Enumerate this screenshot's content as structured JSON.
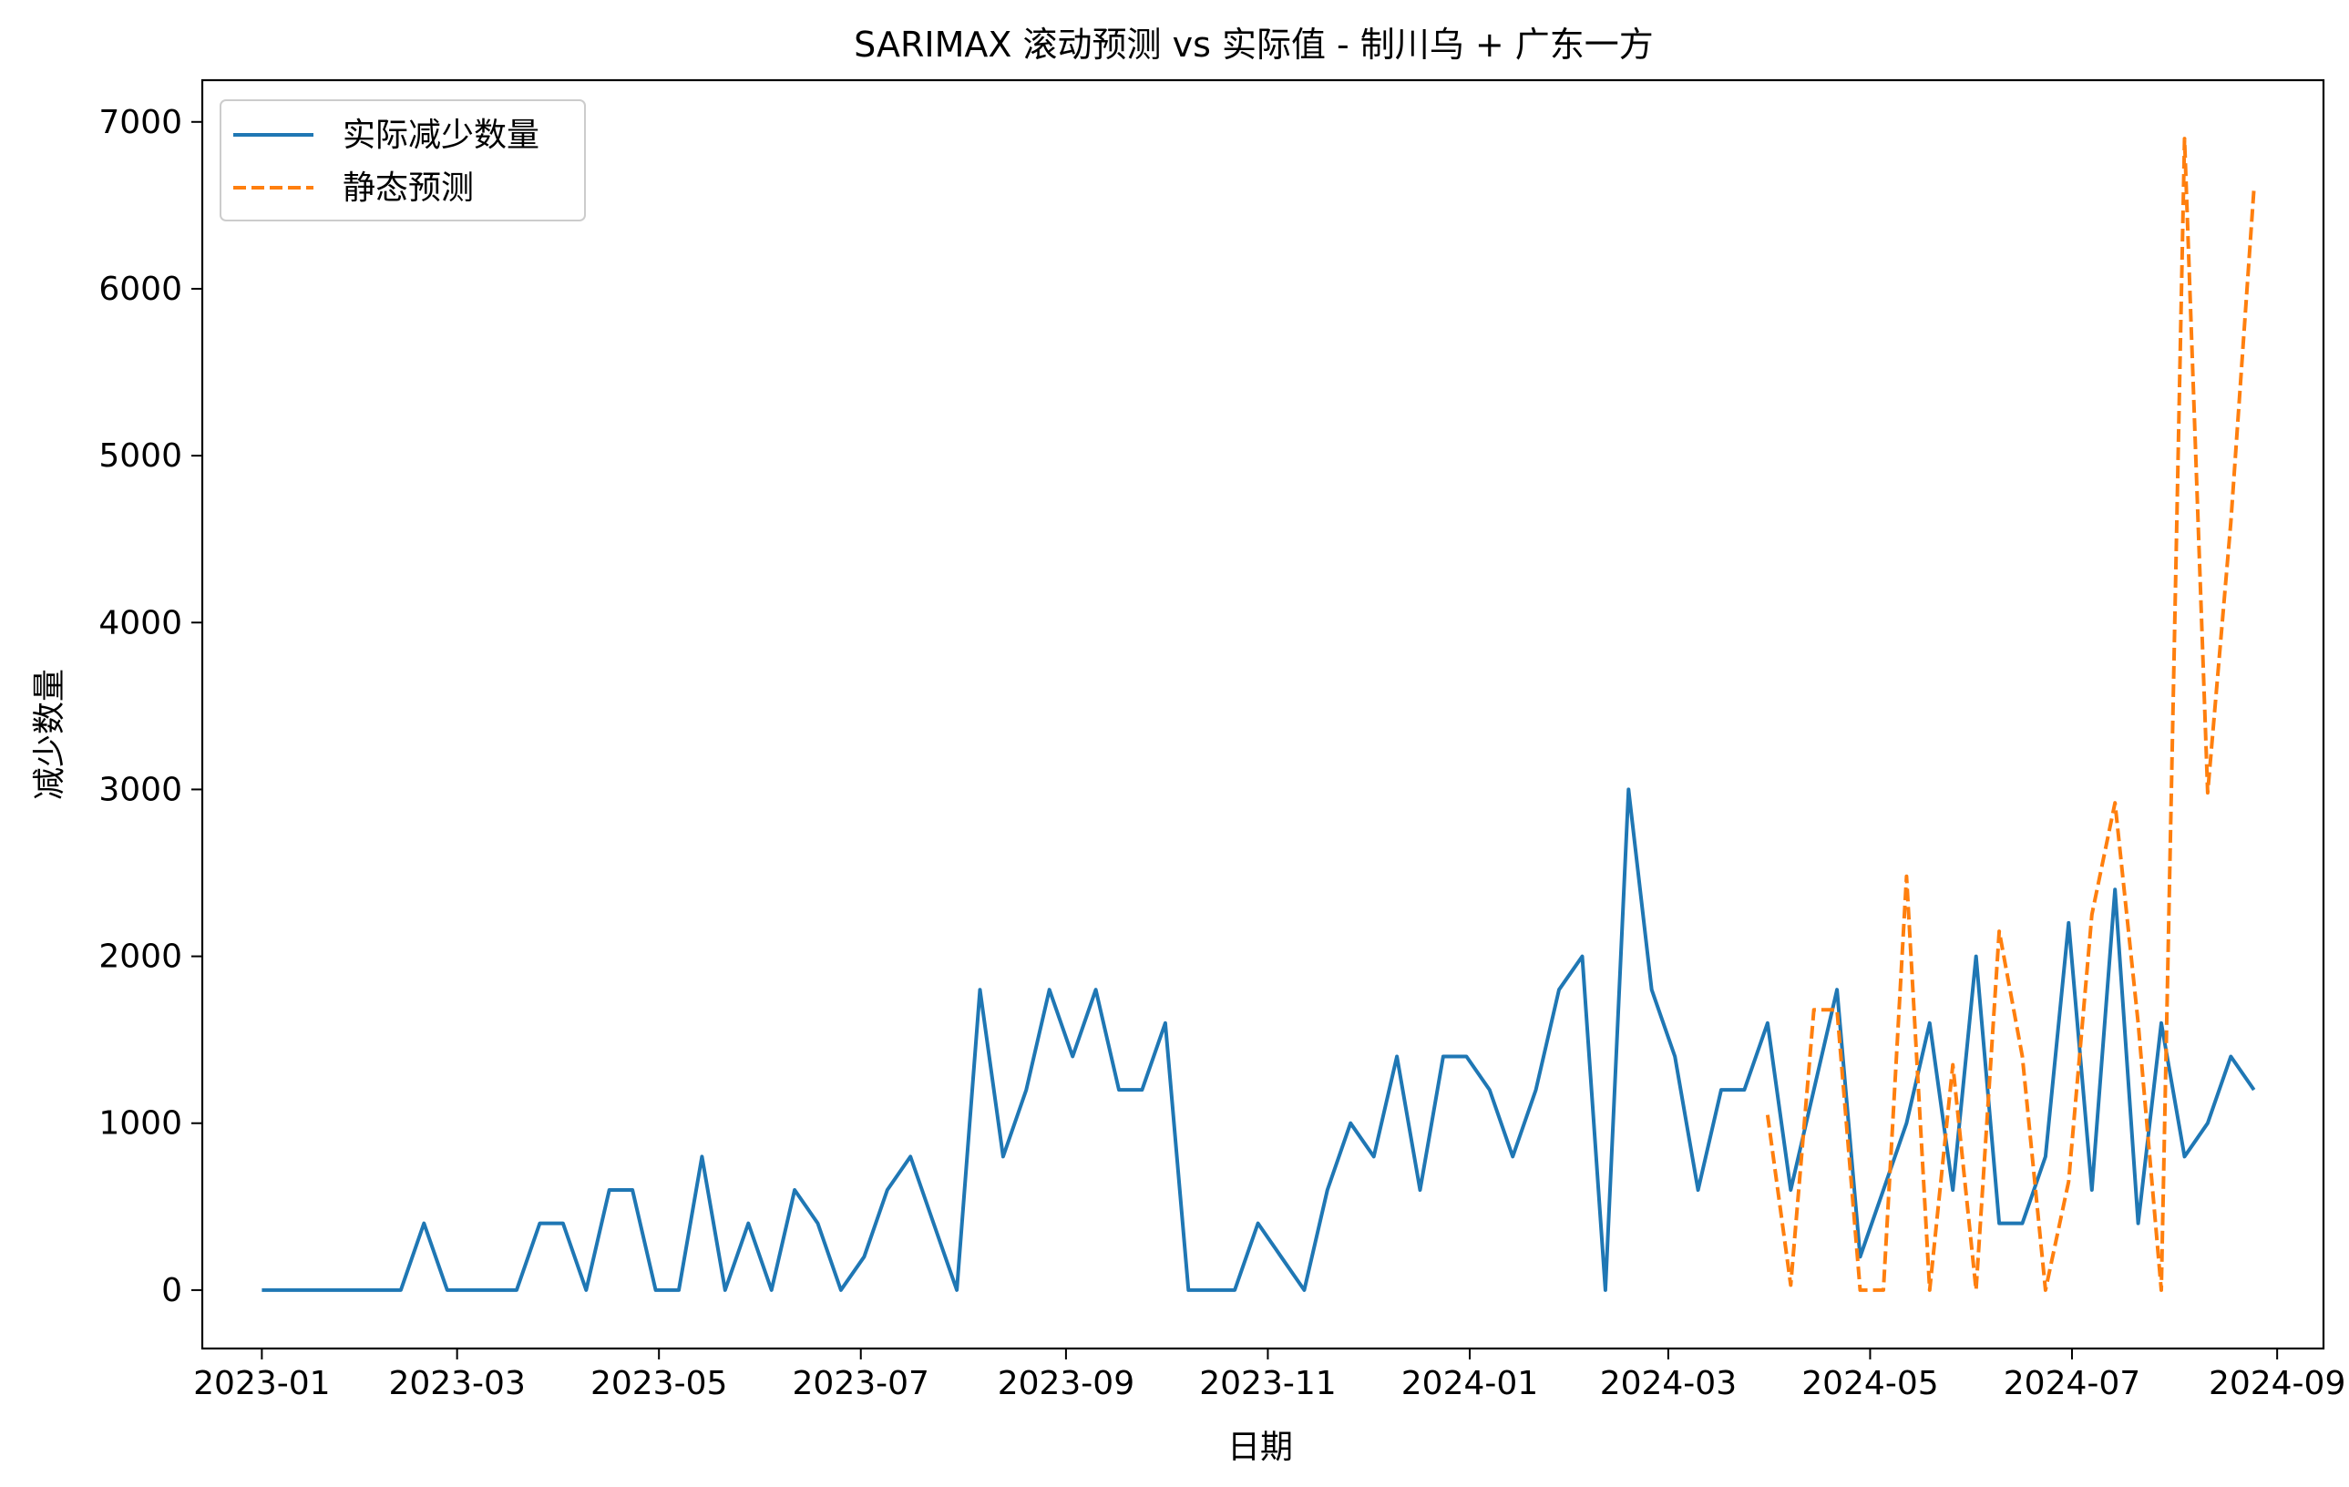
{
  "chart_data": {
    "type": "line",
    "title": "SARIMAX 滚动预测 vs 实际值 - 制川乌 + 广东一方",
    "xlabel": "日期",
    "ylabel": "减少数量",
    "xlim": [
      "2022-12-14",
      "2024-09-15"
    ],
    "ylim": [
      -350,
      7250
    ],
    "x_ticks": [
      "2023-01",
      "2023-03",
      "2023-05",
      "2023-07",
      "2023-09",
      "2023-11",
      "2024-01",
      "2024-03",
      "2024-05",
      "2024-07",
      "2024-09"
    ],
    "y_ticks": [
      0,
      1000,
      2000,
      3000,
      4000,
      5000,
      6000,
      7000
    ],
    "legend_position": "upper-left",
    "grid": false,
    "series": [
      {
        "name": "实际减少数量",
        "color": "#1f77b4",
        "style": "solid",
        "x": [
          "2023-01-01",
          "2023-01-08",
          "2023-01-15",
          "2023-01-22",
          "2023-01-29",
          "2023-02-05",
          "2023-02-12",
          "2023-02-19",
          "2023-02-26",
          "2023-03-05",
          "2023-03-12",
          "2023-03-19",
          "2023-03-26",
          "2023-04-02",
          "2023-04-09",
          "2023-04-16",
          "2023-04-23",
          "2023-04-30",
          "2023-05-07",
          "2023-05-14",
          "2023-05-21",
          "2023-05-28",
          "2023-06-04",
          "2023-06-11",
          "2023-06-18",
          "2023-06-25",
          "2023-07-02",
          "2023-07-09",
          "2023-07-16",
          "2023-07-23",
          "2023-07-30",
          "2023-08-06",
          "2023-08-13",
          "2023-08-20",
          "2023-08-27",
          "2023-09-03",
          "2023-09-10",
          "2023-09-17",
          "2023-09-24",
          "2023-10-01",
          "2023-10-08",
          "2023-10-15",
          "2023-10-22",
          "2023-10-29",
          "2023-11-05",
          "2023-11-12",
          "2023-11-19",
          "2023-11-26",
          "2023-12-03",
          "2023-12-10",
          "2023-12-17",
          "2023-12-24",
          "2023-12-31",
          "2024-01-07",
          "2024-01-14",
          "2024-01-21",
          "2024-01-28",
          "2024-02-04",
          "2024-02-11",
          "2024-02-18",
          "2024-02-25",
          "2024-03-03",
          "2024-03-10",
          "2024-03-17",
          "2024-03-24",
          "2024-03-31",
          "2024-04-07",
          "2024-04-14",
          "2024-04-21",
          "2024-04-28",
          "2024-05-05",
          "2024-05-12",
          "2024-05-19",
          "2024-05-26",
          "2024-06-02",
          "2024-06-09",
          "2024-06-16",
          "2024-06-23",
          "2024-06-30",
          "2024-07-07",
          "2024-07-14",
          "2024-07-21",
          "2024-07-28",
          "2024-08-04",
          "2024-08-11",
          "2024-08-18",
          "2024-08-25"
        ],
        "values": [
          0,
          0,
          0,
          0,
          0,
          0,
          0,
          400,
          0,
          0,
          0,
          0,
          400,
          400,
          0,
          600,
          600,
          0,
          0,
          800,
          0,
          400,
          0,
          600,
          400,
          0,
          200,
          600,
          800,
          400,
          0,
          1800,
          800,
          1200,
          1800,
          1400,
          1800,
          1200,
          1200,
          1600,
          0,
          0,
          0,
          400,
          200,
          0,
          600,
          1000,
          800,
          1400,
          600,
          1400,
          1400,
          1200,
          800,
          1200,
          1800,
          2000,
          0,
          3000,
          1800,
          1400,
          600,
          1200,
          1200,
          1600,
          600,
          1200,
          1800,
          200,
          600,
          1000,
          1600,
          600,
          2000,
          400,
          400,
          800,
          2200,
          600,
          2400,
          400,
          1600,
          800,
          1000,
          1400,
          1200
        ]
      },
      {
        "name": "静态预测",
        "color": "#ff7f0e",
        "style": "dashed",
        "x": [
          "2024-03-31",
          "2024-04-07",
          "2024-04-14",
          "2024-04-21",
          "2024-04-28",
          "2024-05-05",
          "2024-05-12",
          "2024-05-19",
          "2024-05-26",
          "2024-06-02",
          "2024-06-09",
          "2024-06-16",
          "2024-06-23",
          "2024-06-30",
          "2024-07-07",
          "2024-07-14",
          "2024-07-21",
          "2024-07-28",
          "2024-08-04",
          "2024-08-11",
          "2024-08-18",
          "2024-08-25"
        ],
        "values": [
          1050,
          30,
          1680,
          1680,
          0,
          0,
          2480,
          0,
          1350,
          0,
          2150,
          1400,
          0,
          650,
          2250,
          2920,
          1600,
          0,
          6900,
          2980,
          4600,
          6600
        ]
      }
    ]
  }
}
